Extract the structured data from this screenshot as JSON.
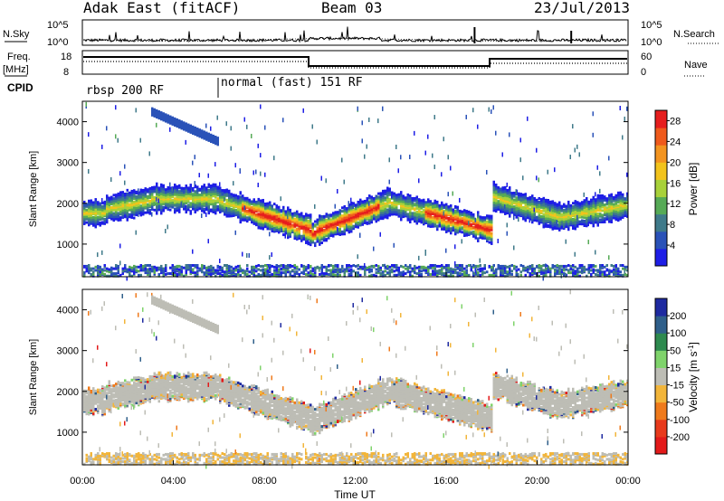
{
  "header": {
    "station": "Adak East (fitACF)",
    "beam": "Beam 03",
    "date": "23/Jul/2013"
  },
  "strip": {
    "nsky_label": "N.Sky",
    "nsearch_label": "N.Search",
    "scale_left": [
      "10^5",
      "10^0"
    ],
    "scale_right": [
      "10^5",
      "10^0"
    ],
    "freq_label": "Freq.",
    "freq_unit": "[MHz]",
    "freq_ticks": [
      "18",
      "8"
    ],
    "nave_label": "Nave",
    "nave_ticks": [
      "60",
      "0"
    ],
    "cpid_label": "CPID",
    "cpid_segments": [
      "rbsp 200 RF",
      "normal (fast) 151 RF"
    ]
  },
  "chart_data": [
    {
      "type": "heatmap",
      "title": "",
      "xlabel": "Time UT",
      "ylabel": "Slant Range [km]",
      "x_ticks": [
        "00:00",
        "04:00",
        "08:00",
        "12:00",
        "16:00",
        "20:00",
        "00:00"
      ],
      "y_ticks": [
        1000,
        2000,
        3000,
        4000
      ],
      "ylim": [
        200,
        4500
      ],
      "colorbar": {
        "label": "Power [dB]",
        "ticks": [
          4,
          8,
          12,
          16,
          20,
          24,
          28
        ],
        "range": [
          0,
          30
        ],
        "colors": [
          "#1e1ee6",
          "#2a52b8",
          "#3f7a8a",
          "#56aa56",
          "#a8d13a",
          "#f2c31c",
          "#f39420",
          "#ef5a1c",
          "#e61e1e"
        ]
      }
    },
    {
      "type": "heatmap",
      "title": "",
      "xlabel": "Time UT",
      "ylabel": "Slant Range [km]",
      "x_ticks": [
        "00:00",
        "04:00",
        "08:00",
        "12:00",
        "16:00",
        "20:00",
        "00:00"
      ],
      "y_ticks": [
        1000,
        2000,
        3000,
        4000
      ],
      "ylim": [
        200,
        4500
      ],
      "colorbar": {
        "label": "Velocity [m s^-1]",
        "ticks": [
          200,
          100,
          50,
          15,
          -15,
          -50,
          -100,
          -200
        ],
        "colors": [
          "#1e2aa0",
          "#2f5f8a",
          "#2e8a4f",
          "#7fd36b",
          "#bdbdb5",
          "#f2b53a",
          "#ef7a1c",
          "#e83a1c",
          "#e31a1a"
        ]
      }
    }
  ]
}
